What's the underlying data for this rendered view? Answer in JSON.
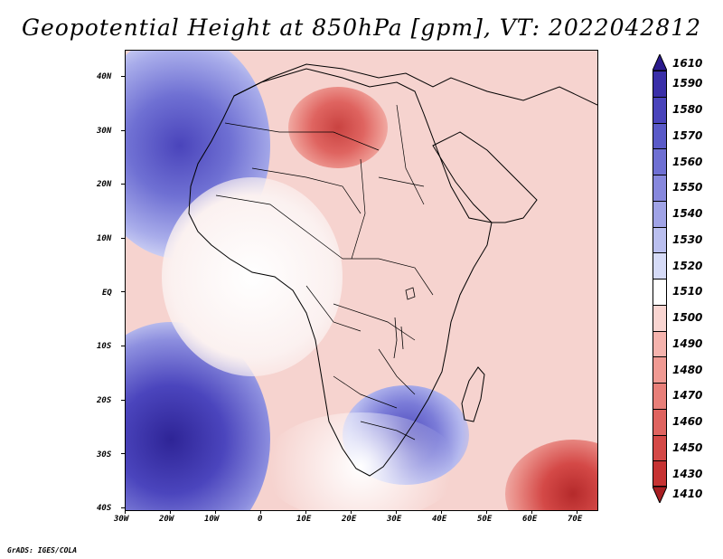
{
  "title": "Geopotential Height at 850hPa [gpm], VT: 2022042812",
  "footer": "GrADS: IGES/COLA",
  "lat_labels": [
    "40N",
    "30N",
    "20N",
    "10N",
    "EQ",
    "10S",
    "20S",
    "30S",
    "40S"
  ],
  "lon_labels": [
    "30W",
    "20W",
    "10W",
    "0",
    "10E",
    "20E",
    "30E",
    "40E",
    "50E",
    "60E",
    "70E"
  ],
  "colorbar": {
    "levels": [
      "1610",
      "1590",
      "1580",
      "1570",
      "1560",
      "1550",
      "1540",
      "1530",
      "1520",
      "1510",
      "1500",
      "1490",
      "1480",
      "1470",
      "1460",
      "1450",
      "1430",
      "1410"
    ],
    "colors": [
      "#2a1a8c",
      "#3a2fa8",
      "#4a44bb",
      "#5a5ac8",
      "#6f70d3",
      "#8788dd",
      "#a0a3e6",
      "#babfef",
      "#d6dbf7",
      "#ffffff",
      "#f9d5d1",
      "#f5b3ad",
      "#f09a93",
      "#e87f79",
      "#df6460",
      "#d44947",
      "#c63333",
      "#a81e22"
    ]
  }
}
